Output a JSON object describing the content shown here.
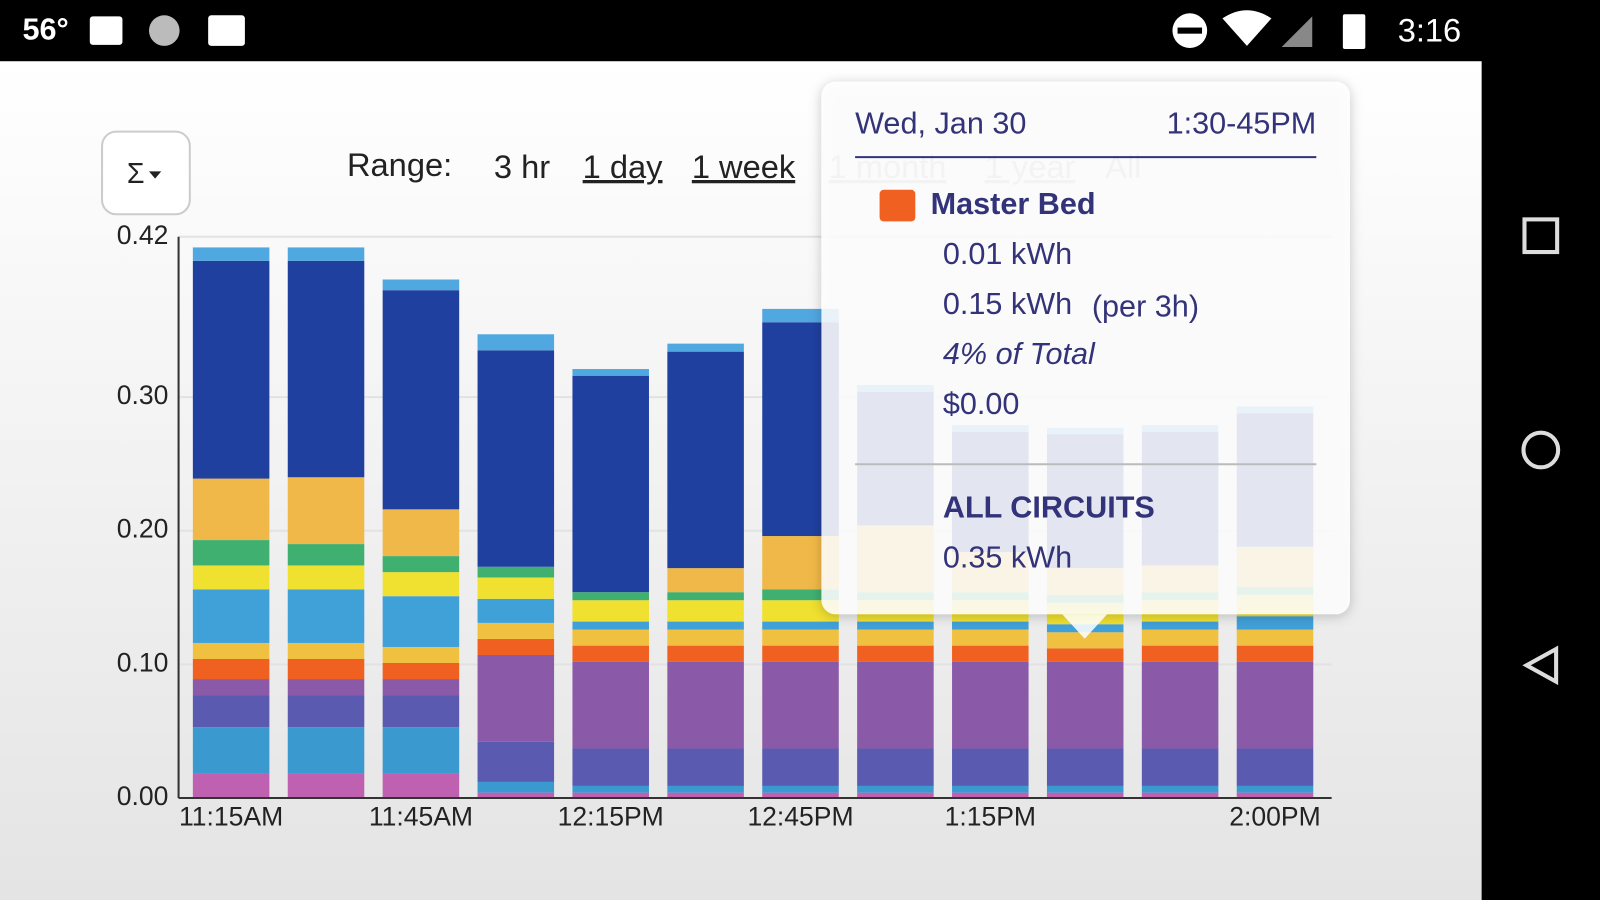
{
  "status_bar": {
    "temperature": "56°",
    "time": "3:16"
  },
  "button": {
    "label": "Σ"
  },
  "range": {
    "label": "Range:",
    "options": [
      "3 hr",
      "1 day",
      "1 week",
      "1 month",
      "1 year",
      "All"
    ]
  },
  "chart_data": {
    "type": "stacked_bar",
    "categories": [
      "11:15AM",
      null,
      "11:45AM",
      null,
      "12:15PM",
      null,
      "12:45PM",
      null,
      "1:15PM",
      null,
      null,
      "2:00PM"
    ],
    "ylim": [
      0,
      0.42
    ],
    "yticks": [
      {
        "value": 0,
        "label": "0.00"
      },
      {
        "value": 0.1,
        "label": "0.10"
      },
      {
        "value": 0.2,
        "label": "0.20"
      },
      {
        "value": 0.3,
        "label": "0.30"
      },
      0.42
    ],
    "grid": true,
    "series": [
      {
        "color": "#c060b0",
        "values": [
          0.018,
          0.018,
          0.018,
          0.004,
          0.004,
          0.004,
          0.004,
          0.004,
          0.004,
          0.004,
          0.004,
          0.004
        ]
      },
      {
        "color": "#3a9ad0",
        "values": [
          0.035,
          0.035,
          0.035,
          0.008,
          0.005,
          0.005,
          0.005,
          0.005,
          0.005,
          0.005,
          0.005,
          0.005
        ]
      },
      {
        "color": "#5a5ab0",
        "values": [
          0.024,
          0.024,
          0.024,
          0.03,
          0.028,
          0.028,
          0.028,
          0.028,
          0.028,
          0.028,
          0.028,
          0.028
        ]
      },
      {
        "color": "#8a5aa8",
        "values": [
          0.012,
          0.012,
          0.012,
          0.065,
          0.065,
          0.065,
          0.065,
          0.065,
          0.065,
          0.065,
          0.065,
          0.065
        ]
      },
      {
        "color": "#f06020",
        "values": [
          0.015,
          0.015,
          0.012,
          0.012,
          0.012,
          0.012,
          0.012,
          0.012,
          0.012,
          0.01,
          0.012,
          0.012
        ]
      },
      {
        "color": "#f0c040",
        "values": [
          0.012,
          0.012,
          0.012,
          0.012,
          0.012,
          0.012,
          0.012,
          0.012,
          0.012,
          0.012,
          0.012,
          0.012
        ]
      },
      {
        "color": "#40a0d8",
        "values": [
          0.04,
          0.04,
          0.038,
          0.018,
          0.006,
          0.006,
          0.006,
          0.006,
          0.006,
          0.006,
          0.006,
          0.01
        ]
      },
      {
        "color": "#f0e030",
        "values": [
          0.018,
          0.018,
          0.018,
          0.016,
          0.016,
          0.016,
          0.016,
          0.016,
          0.016,
          0.016,
          0.016,
          0.016
        ]
      },
      {
        "color": "#40b070",
        "values": [
          0.019,
          0.016,
          0.012,
          0.008,
          0.006,
          0.006,
          0.008,
          0.006,
          0.006,
          0.006,
          0.006,
          0.006
        ]
      },
      {
        "color": "#f0b848",
        "values": [
          0.046,
          0.05,
          0.035,
          0,
          0,
          0.018,
          0.04,
          0.05,
          0.03,
          0.02,
          0.02,
          0.03
        ]
      },
      {
        "color": "#2040a0",
        "values": [
          0.163,
          0.162,
          0.164,
          0.162,
          0.162,
          0.162,
          0.16,
          0.1,
          0.09,
          0.1,
          0.1,
          0.1
        ]
      },
      {
        "color": "#50a8e0",
        "values": [
          0.01,
          0.01,
          0.008,
          0.012,
          0.005,
          0.006,
          0.01,
          0.005,
          0.005,
          0.005,
          0.005,
          0.005
        ]
      }
    ]
  },
  "tooltip": {
    "date": "Wed, Jan 30",
    "interval": "1:30-45PM",
    "circuit": "Master Bed",
    "energy": "0.01 kWh",
    "energy_period": "0.15 kWh",
    "period_note": "(per 3h)",
    "share": "4% of Total",
    "cost": "$0.00",
    "total_label": "ALL CIRCUITS",
    "total_energy": "0.35 kWh"
  }
}
